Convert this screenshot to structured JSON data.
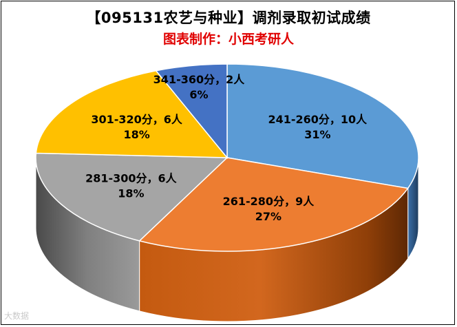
{
  "header": {
    "title": "【095131农艺与种业】调剂录取初试成绩",
    "subtitle": "图表制作：小西考研人"
  },
  "watermark": "大数据",
  "chart_data": {
    "type": "pie",
    "style": "3d",
    "title": "【095131农艺与种业】调剂录取初试成绩",
    "subtitle": "图表制作：小西考研人",
    "legend": "none",
    "slices": [
      {
        "label": "241-260分",
        "count": 10,
        "unit": "人",
        "percent": 31,
        "color": "#5b9bd5"
      },
      {
        "label": "261-280分",
        "count": 9,
        "unit": "人",
        "percent": 27,
        "color": "#ed7d31"
      },
      {
        "label": "281-300分",
        "count": 6,
        "unit": "人",
        "percent": 18,
        "color": "#a5a5a5"
      },
      {
        "label": "301-320分",
        "count": 6,
        "unit": "人",
        "percent": 18,
        "color": "#ffc000"
      },
      {
        "label": "341-360分",
        "count": 2,
        "unit": "人",
        "percent": 6,
        "color": "#4472c4"
      }
    ]
  }
}
